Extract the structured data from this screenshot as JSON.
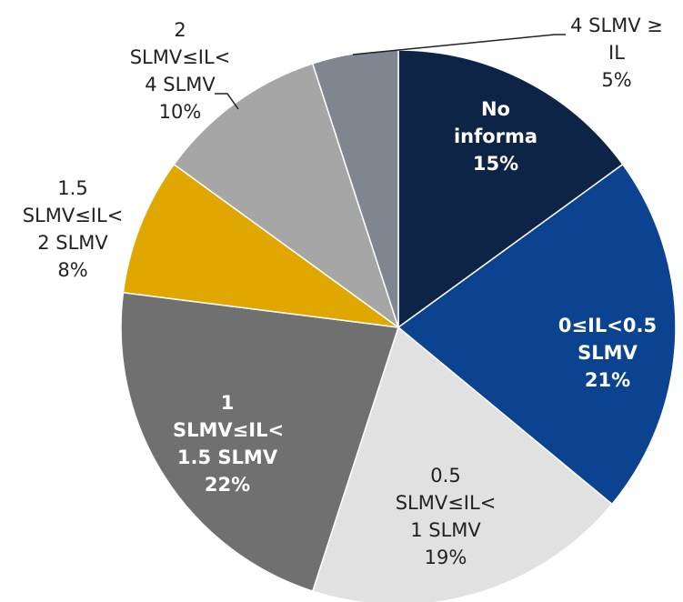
{
  "chart_data": {
    "type": "pie",
    "categories": [
      "No informa",
      "0≤IL<0.5 SLMV",
      "0.5 SLMV≤IL< 1 SLMV",
      "1 SLMV≤IL< 1.5 SLMV",
      "1.5 SLMV≤IL< 2 SLMV",
      "2 SLMV≤IL< 4 SLMV",
      "4 SLMV ≥ IL"
    ],
    "values": [
      15,
      21,
      19,
      22,
      8,
      10,
      5
    ],
    "value_labels": [
      "15%",
      "21%",
      "19%",
      "22%",
      "8%",
      "10%",
      "5%"
    ],
    "colors": [
      "#0e2446",
      "#0b4390",
      "#e1e1e1",
      "#707070",
      "#e0a700",
      "#a6a6a6",
      "#80868f"
    ]
  }
}
